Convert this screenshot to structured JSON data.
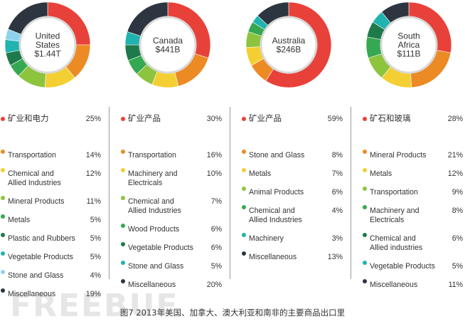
{
  "colors": {
    "red": "#e8413a",
    "orange": "#ec8a24",
    "yellow": "#f4cf33",
    "lightgreen": "#8dc43e",
    "green": "#35a852",
    "darkgreen": "#1e7a4a",
    "teal": "#20b3b0",
    "lightblue": "#8ed3ee",
    "dark": "#2d3640"
  },
  "chart_data": [
    {
      "type": "pie",
      "title": "United States $1.44T",
      "center_lines": [
        "United",
        "States",
        "$1.44T"
      ],
      "categories": [
        "矿业和电力",
        "Transportation",
        "Chemical and Allied Industries",
        "Mineral Products",
        "Metals",
        "Plastic and Rubbers",
        "Vegetable Products",
        "Stone and Glass",
        "Miscellaneous"
      ],
      "label_lines": [
        [
          "矿业和电力"
        ],
        [
          "Transportation"
        ],
        [
          "Chemical and",
          "Allied Industries"
        ],
        [
          "Mineral Products"
        ],
        [
          "Metals"
        ],
        [
          "Plastic and Rubbers"
        ],
        [
          "Vegetable Products"
        ],
        [
          "Stone and Glass"
        ],
        [
          "Miscellaneous"
        ]
      ],
      "values": [
        25,
        14,
        12,
        11,
        5,
        5,
        5,
        4,
        19
      ],
      "value_labels": [
        "25%",
        "14%",
        "12%",
        "11%",
        "5%",
        "5%",
        "5%",
        "4%",
        "19%"
      ],
      "colors": [
        "red",
        "orange",
        "yellow",
        "lightgreen",
        "green",
        "darkgreen",
        "teal",
        "lightblue",
        "dark"
      ]
    },
    {
      "type": "pie",
      "title": "Canada $441B",
      "center_lines": [
        "Canada",
        "$441B"
      ],
      "categories": [
        "矿业产品",
        "Transportation",
        "Machinery and Electricals",
        "Chemical and Allied Industries",
        "Wood Products",
        "Vegetable Products",
        "Stone and Glass",
        "Miscellaneous"
      ],
      "label_lines": [
        [
          "矿业产品"
        ],
        [
          "Transportation"
        ],
        [
          "Machinery and",
          "Electricals"
        ],
        [
          "Chemical and",
          "Allied Industries"
        ],
        [
          "Wood Products"
        ],
        [
          "Vegetable Products"
        ],
        [
          "Stone and Glass"
        ],
        [
          "Miscellaneous"
        ]
      ],
      "values": [
        30,
        16,
        10,
        7,
        6,
        6,
        5,
        20
      ],
      "value_labels": [
        "30%",
        "16%",
        "10%",
        "7%",
        "6%",
        "6%",
        "5%",
        "20%"
      ],
      "colors": [
        "red",
        "orange",
        "yellow",
        "lightgreen",
        "green",
        "darkgreen",
        "teal",
        "dark"
      ]
    },
    {
      "type": "pie",
      "title": "Australia $246B",
      "center_lines": [
        "Australia",
        "$246B"
      ],
      "categories": [
        "矿业产品",
        "Stone and Glass",
        "Metals",
        "Animal Products",
        "Chemical and Allied Industries",
        "Machinery",
        "Miscellaneous"
      ],
      "label_lines": [
        [
          "矿业产品"
        ],
        [
          "Stone and Glass"
        ],
        [
          "Metals"
        ],
        [
          "Animal Products"
        ],
        [
          "Chemical and",
          "Allied Industries"
        ],
        [
          "Machinery"
        ],
        [
          "Miscellaneous"
        ]
      ],
      "values": [
        59,
        8,
        7,
        6,
        4,
        3,
        13
      ],
      "value_labels": [
        "59%",
        "8%",
        "7%",
        "6%",
        "4%",
        "3%",
        "13%"
      ],
      "colors": [
        "red",
        "orange",
        "yellow",
        "lightgreen",
        "green",
        "teal",
        "dark"
      ]
    },
    {
      "type": "pie",
      "title": "South Africa $111B",
      "center_lines": [
        "South",
        "Africa",
        "$111B"
      ],
      "categories": [
        "矿石和玻璃",
        "Mineral Products",
        "Metals",
        "Transportation",
        "Machinery and Electricals",
        "Chemical and Allied industries",
        "Vegetable Products",
        "Miscellaneous"
      ],
      "label_lines": [
        [
          "矿石和玻璃"
        ],
        [
          "Mineral Products"
        ],
        [
          "Metals"
        ],
        [
          "Transportation"
        ],
        [
          "Machinery and",
          "Electricals"
        ],
        [
          "Chemical and",
          "Allied industries"
        ],
        [
          "Vegetable Products"
        ],
        [
          "Miscellaneous"
        ]
      ],
      "values": [
        28,
        21,
        12,
        9,
        8,
        6,
        5,
        11
      ],
      "value_labels": [
        "28%",
        "21%",
        "12%",
        "9%",
        "8%",
        "6%",
        "5%",
        "11%"
      ],
      "colors": [
        "red",
        "orange",
        "yellow",
        "lightgreen",
        "green",
        "darkgreen",
        "teal",
        "dark"
      ]
    }
  ],
  "caption": "图7  2013年美国、加拿大、澳大利亚和南非的主要商品出口里",
  "watermark": "FREEBUF"
}
